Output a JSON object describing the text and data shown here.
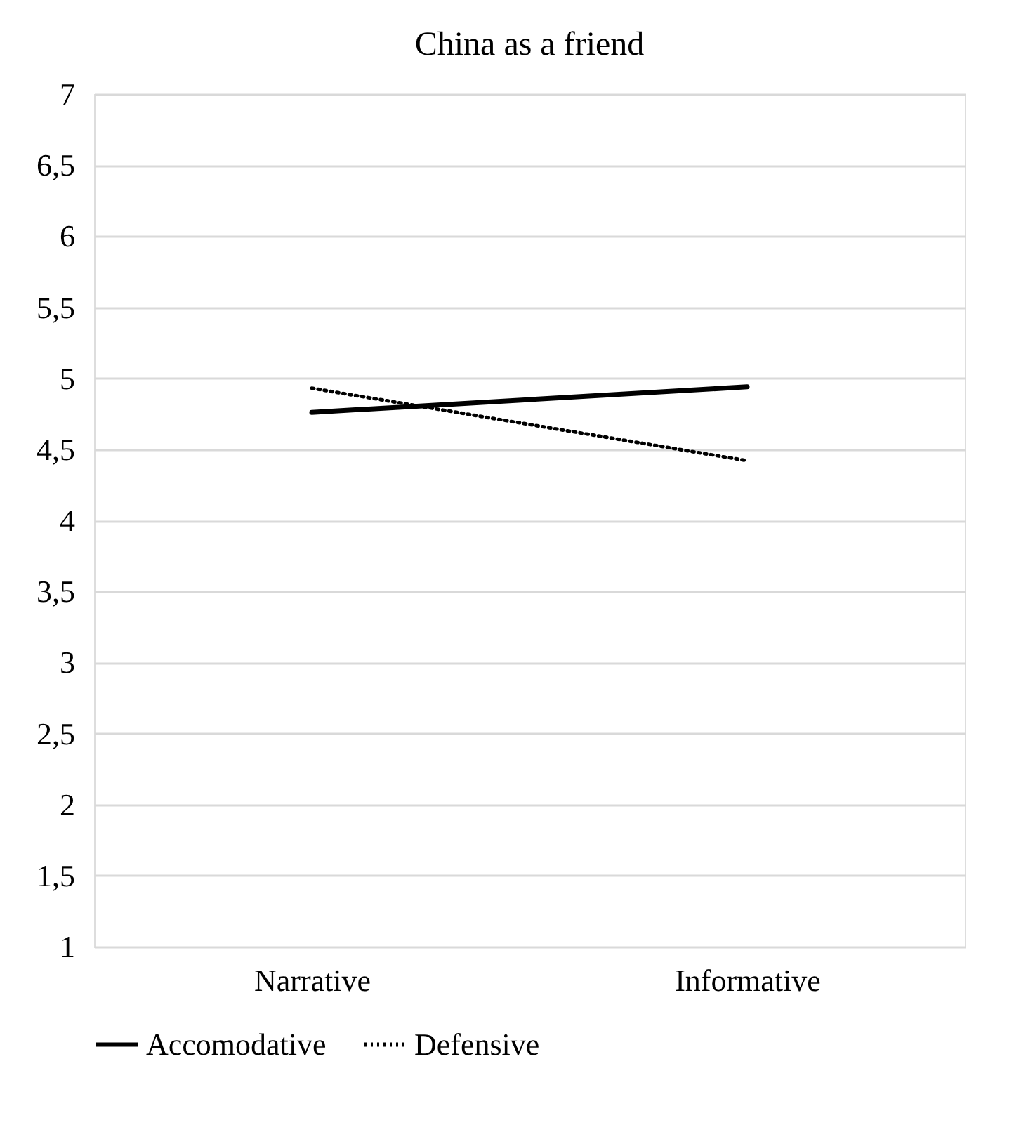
{
  "chart_data": {
    "type": "line",
    "title": "China as a friend",
    "categories": [
      "Narrative",
      "Informative"
    ],
    "series": [
      {
        "name": "Accomodative",
        "color": "#000000",
        "values": [
          4.76,
          4.94
        ],
        "line_style": "solid"
      },
      {
        "name": "Defensive",
        "color": "#000000",
        "values": [
          4.93,
          4.42
        ],
        "line_style": "dotted"
      }
    ],
    "ylim": [
      1,
      7
    ],
    "yticks": [
      1,
      {
        "value": 1.5,
        "label": "1,5"
      },
      2,
      {
        "value": 2.5,
        "label": "2,5"
      },
      3,
      {
        "value": 3.5,
        "label": "3,5"
      },
      4,
      {
        "value": 4.5,
        "label": "4,5"
      },
      5,
      {
        "value": 5.5,
        "label": "5,5"
      },
      6,
      {
        "value": 6.5,
        "label": "6,5"
      },
      7
    ],
    "grid": "y",
    "legend": "bottom",
    "marker": "none"
  }
}
